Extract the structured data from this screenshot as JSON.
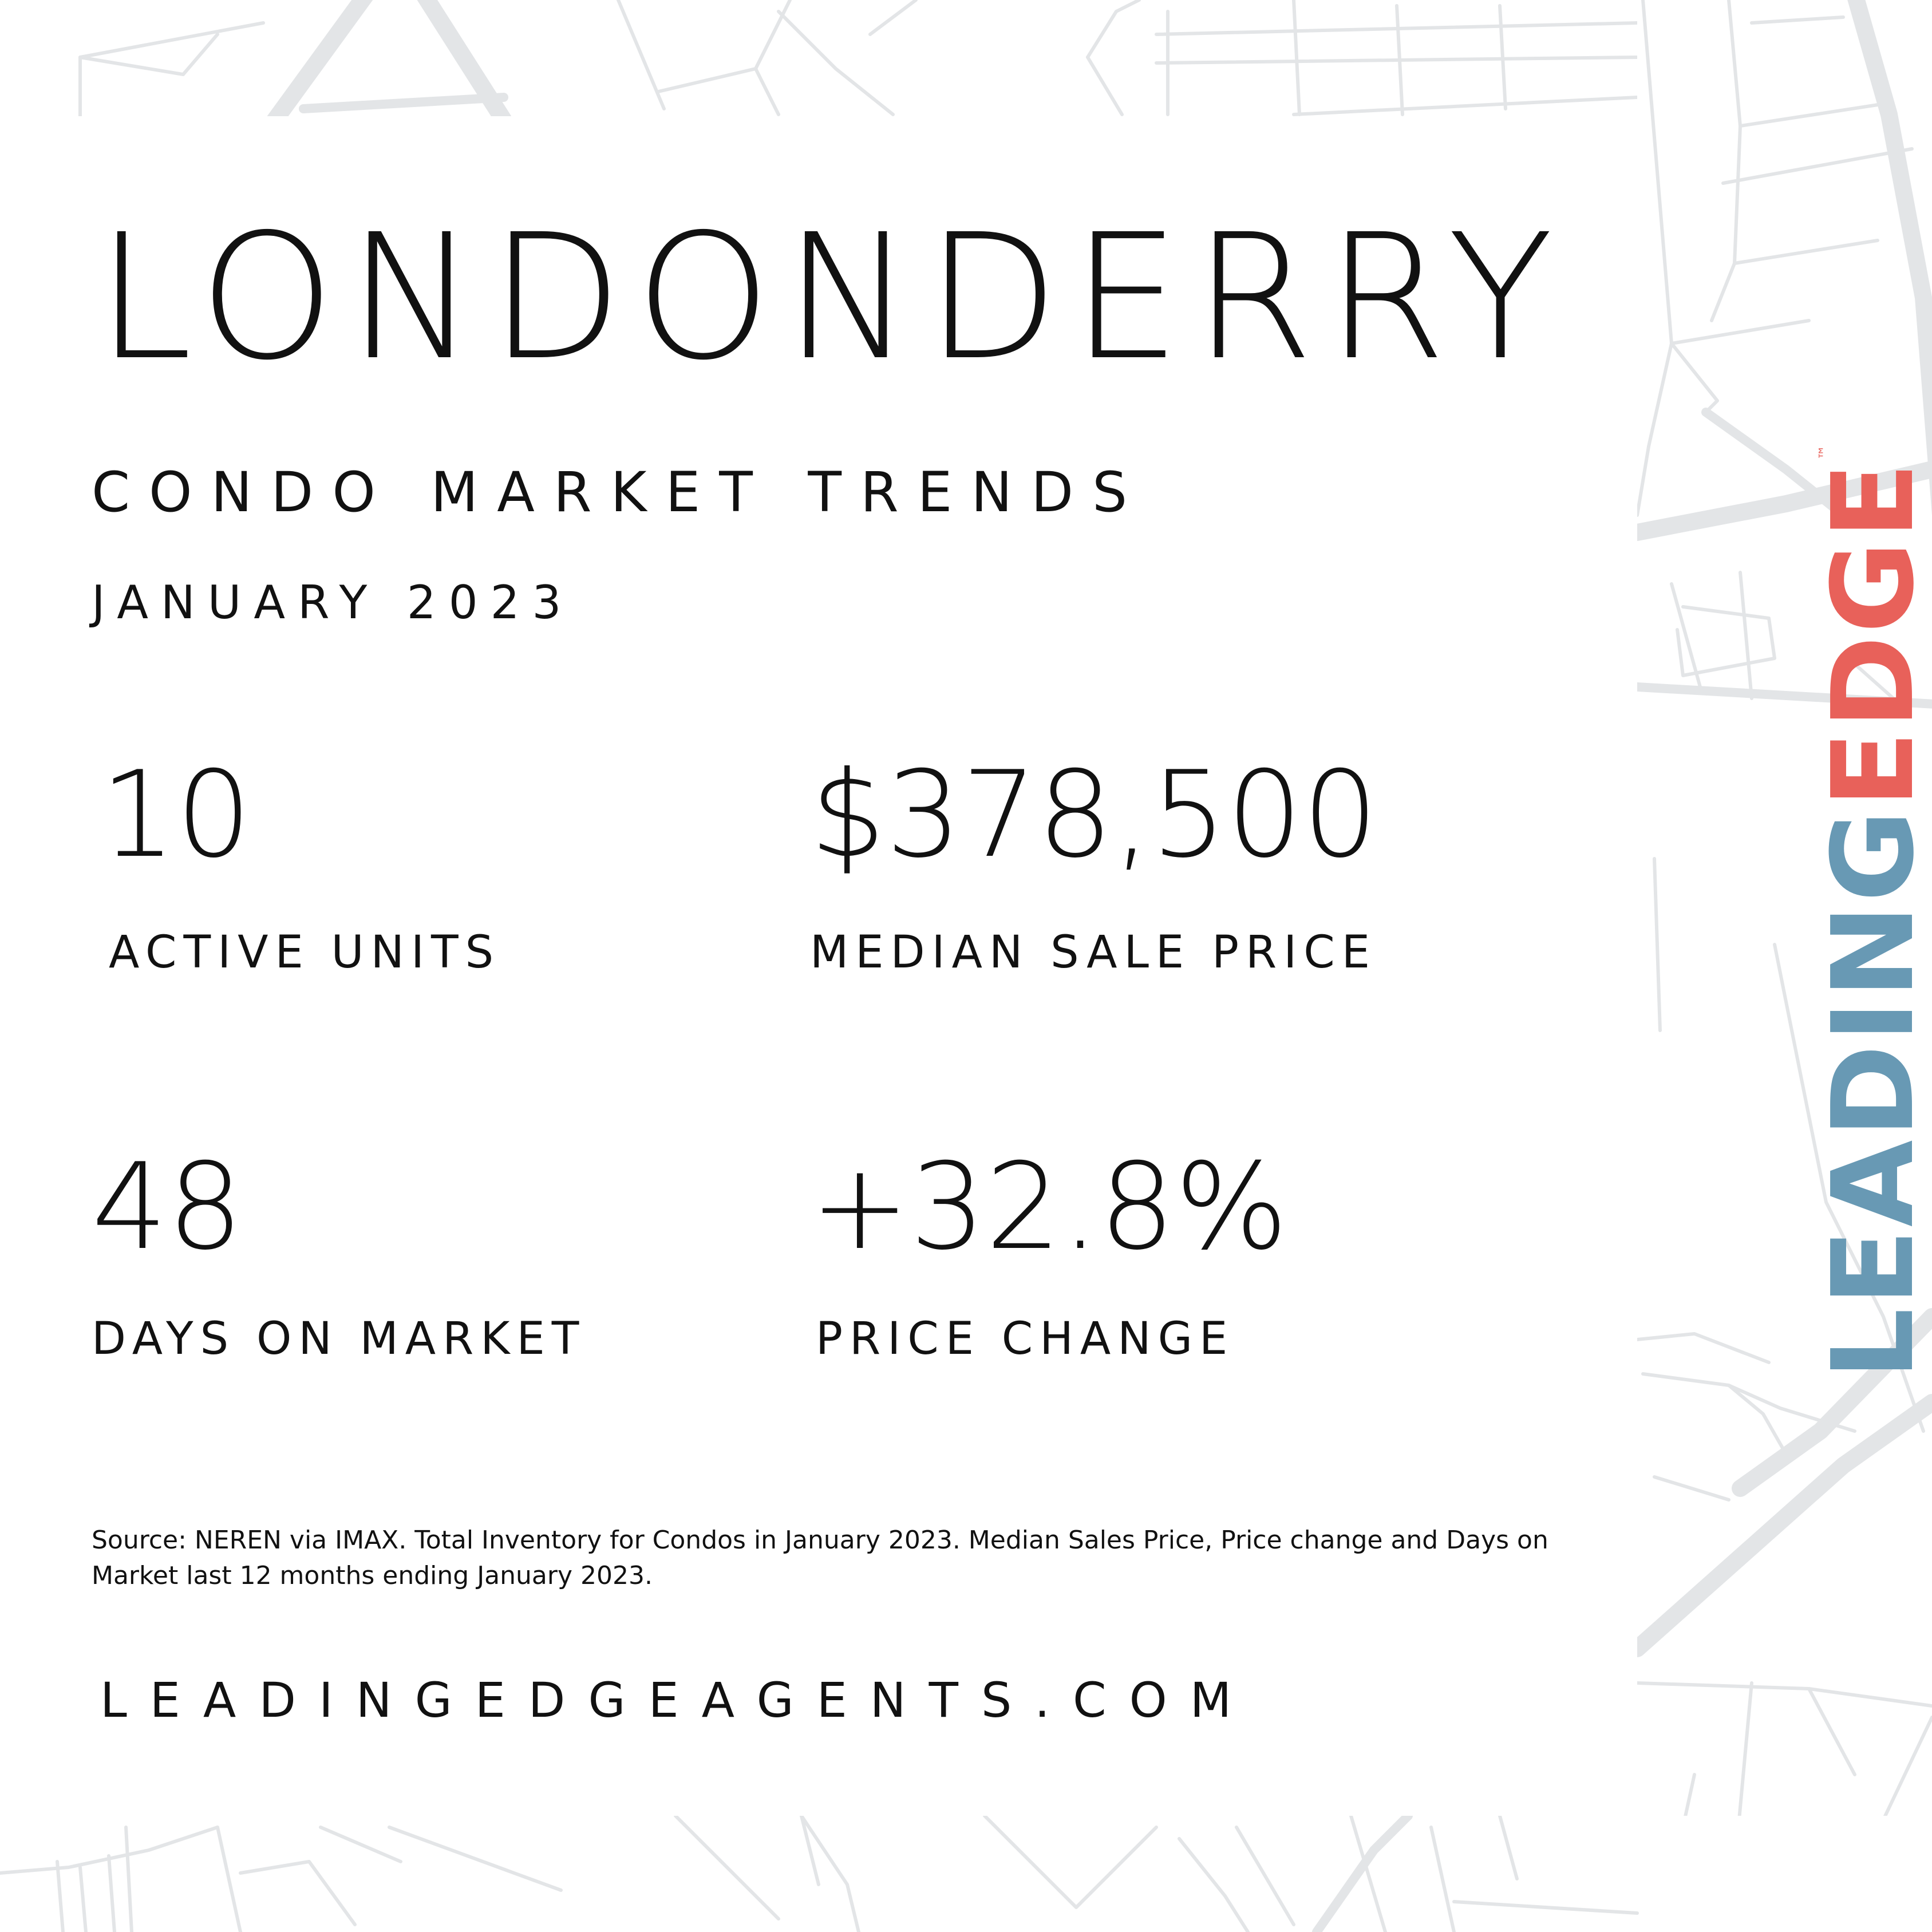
{
  "header": {
    "title": "LONDONDERRY",
    "subtitle": "CONDO MARKET TRENDS",
    "date": "JANUARY 2023"
  },
  "stats": {
    "active_units": {
      "value": "10",
      "label": "ACTIVE UNITS"
    },
    "median_sale_price": {
      "value": "$378,500",
      "label": "MEDIAN SALE PRICE"
    },
    "days_on_market": {
      "value": "48",
      "label": "DAYS ON MARKET"
    },
    "price_change": {
      "value": "+32.8%",
      "label": "PRICE CHANGE"
    }
  },
  "footer": {
    "source": "Source: NEREN via IMAX. Total Inventory for Condos in January 2023. Median Sales Price, Price change and Days on Market last 12 months ending January 2023.",
    "website": "LEADINGEDGEAGENTS.COM"
  },
  "logo": {
    "part1": "LEADING",
    "part2": "EDGE",
    "trademark": "™",
    "color_leading": "#6899b4",
    "color_edge": "#e8615a"
  },
  "colors": {
    "background": "#ffffff",
    "text": "#111111",
    "map_lines": "#e3e5e7"
  }
}
